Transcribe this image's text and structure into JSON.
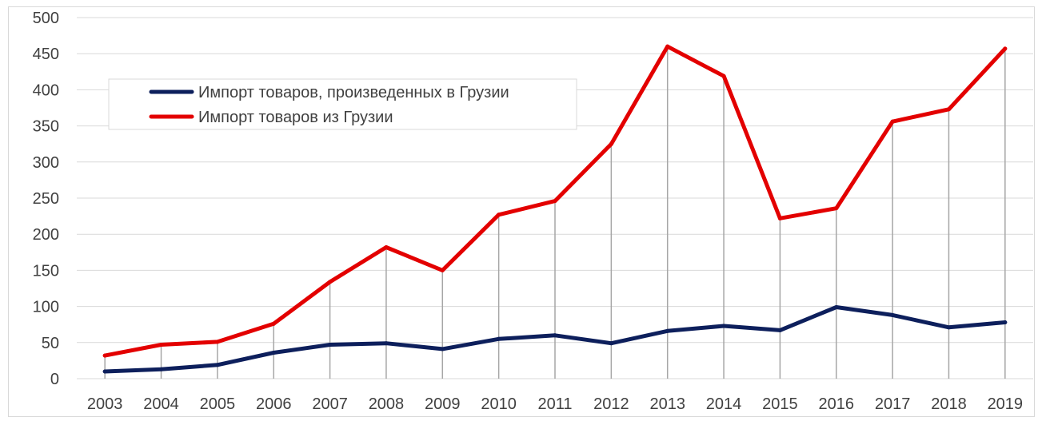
{
  "chart_data": {
    "type": "line",
    "title": "",
    "xlabel": "",
    "ylabel": "",
    "ylim": [
      0,
      500
    ],
    "y_ticks": [
      "0",
      "50",
      "100",
      "150",
      "200",
      "250",
      "300",
      "350",
      "400",
      "450",
      "500"
    ],
    "categories": [
      "2003",
      "2004",
      "2005",
      "2006",
      "2007",
      "2008",
      "2009",
      "2010",
      "2011",
      "2012",
      "2013",
      "2014",
      "2015",
      "2016",
      "2017",
      "2018",
      "2019"
    ],
    "grid": true,
    "drop_lines": true,
    "legend_position": "upper-left",
    "series": [
      {
        "name": "Импорт товаров, произведенных в Грузии",
        "color": "#0d1f5c",
        "values": [
          10,
          13,
          19,
          36,
          47,
          49,
          41,
          55,
          60,
          49,
          66,
          73,
          67,
          99,
          88,
          71,
          78
        ]
      },
      {
        "name": "Импорт товаров из Грузии",
        "color": "#e30000",
        "values": [
          32,
          47,
          51,
          76,
          134,
          182,
          150,
          227,
          246,
          325,
          460,
          419,
          222,
          236,
          356,
          373,
          457
        ]
      }
    ]
  }
}
